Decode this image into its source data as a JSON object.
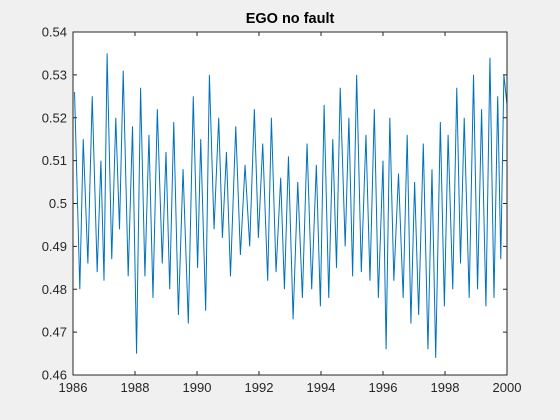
{
  "chart_data": {
    "type": "line",
    "title": "EGO no fault",
    "xlabel": "",
    "ylabel": "",
    "xlim": [
      1986,
      2000
    ],
    "ylim": [
      0.46,
      0.54
    ],
    "x_ticks": [
      1986,
      1988,
      1990,
      1992,
      1994,
      1996,
      1998,
      2000
    ],
    "x_tick_labels": [
      "1986",
      "1988",
      "1990",
      "1992",
      "1994",
      "1996",
      "1998",
      "2000"
    ],
    "y_ticks": [
      0.46,
      0.47,
      0.48,
      0.49,
      0.5,
      0.51,
      0.52,
      0.53,
      0.54
    ],
    "y_tick_labels": [
      "0.46",
      "0.47",
      "0.48",
      "0.49",
      "0.5",
      "0.51",
      "0.52",
      "0.53",
      "0.54"
    ],
    "grid": false,
    "series": [
      {
        "color": "#0072bd",
        "peaks": [
          [
            1986.05,
            0.526
          ],
          [
            1986.33,
            0.515
          ],
          [
            1986.62,
            0.525
          ],
          [
            1986.9,
            0.51
          ],
          [
            1987.1,
            0.535
          ],
          [
            1987.38,
            0.52
          ],
          [
            1987.62,
            0.531
          ],
          [
            1987.92,
            0.518
          ],
          [
            1988.18,
            0.527
          ],
          [
            1988.45,
            0.516
          ],
          [
            1988.72,
            0.522
          ],
          [
            1989.0,
            0.512
          ],
          [
            1989.25,
            0.519
          ],
          [
            1989.55,
            0.508
          ],
          [
            1989.88,
            0.525
          ],
          [
            1990.12,
            0.515
          ],
          [
            1990.4,
            0.53
          ],
          [
            1990.7,
            0.52
          ],
          [
            1990.95,
            0.512
          ],
          [
            1991.25,
            0.518
          ],
          [
            1991.55,
            0.509
          ],
          [
            1991.85,
            0.522
          ],
          [
            1992.12,
            0.514
          ],
          [
            1992.4,
            0.52
          ],
          [
            1992.7,
            0.506
          ],
          [
            1992.95,
            0.511
          ],
          [
            1993.25,
            0.505
          ],
          [
            1993.55,
            0.514
          ],
          [
            1993.85,
            0.509
          ],
          [
            1994.1,
            0.523
          ],
          [
            1994.38,
            0.515
          ],
          [
            1994.62,
            0.527
          ],
          [
            1994.9,
            0.52
          ],
          [
            1995.15,
            0.53
          ],
          [
            1995.45,
            0.516
          ],
          [
            1995.72,
            0.522
          ],
          [
            1996.0,
            0.51
          ],
          [
            1996.22,
            0.52
          ],
          [
            1996.5,
            0.507
          ],
          [
            1996.78,
            0.516
          ],
          [
            1997.02,
            0.505
          ],
          [
            1997.3,
            0.514
          ],
          [
            1997.58,
            0.508
          ],
          [
            1997.85,
            0.519
          ],
          [
            1998.1,
            0.516
          ],
          [
            1998.38,
            0.527
          ],
          [
            1998.62,
            0.52
          ],
          [
            1998.92,
            0.53
          ],
          [
            1999.18,
            0.522
          ],
          [
            1999.45,
            0.534
          ],
          [
            1999.7,
            0.525
          ],
          [
            1999.9,
            0.53
          ]
        ],
        "troughs": [
          [
            1986.22,
            0.48
          ],
          [
            1986.48,
            0.486
          ],
          [
            1986.78,
            0.484
          ],
          [
            1987.0,
            0.482
          ],
          [
            1987.25,
            0.487
          ],
          [
            1987.5,
            0.494
          ],
          [
            1987.78,
            0.483
          ],
          [
            1988.05,
            0.465
          ],
          [
            1988.32,
            0.483
          ],
          [
            1988.58,
            0.478
          ],
          [
            1988.88,
            0.486
          ],
          [
            1989.12,
            0.48
          ],
          [
            1989.4,
            0.474
          ],
          [
            1989.72,
            0.472
          ],
          [
            1990.02,
            0.485
          ],
          [
            1990.28,
            0.475
          ],
          [
            1990.55,
            0.494
          ],
          [
            1990.82,
            0.492
          ],
          [
            1991.08,
            0.483
          ],
          [
            1991.4,
            0.488
          ],
          [
            1991.7,
            0.49
          ],
          [
            1991.98,
            0.492
          ],
          [
            1992.28,
            0.482
          ],
          [
            1992.55,
            0.484
          ],
          [
            1992.82,
            0.48
          ],
          [
            1993.1,
            0.473
          ],
          [
            1993.4,
            0.478
          ],
          [
            1993.7,
            0.48
          ],
          [
            1993.98,
            0.476
          ],
          [
            1994.25,
            0.478
          ],
          [
            1994.5,
            0.485
          ],
          [
            1994.78,
            0.49
          ],
          [
            1995.02,
            0.483
          ],
          [
            1995.3,
            0.484
          ],
          [
            1995.58,
            0.482
          ],
          [
            1995.85,
            0.478
          ],
          [
            1996.1,
            0.466
          ],
          [
            1996.35,
            0.482
          ],
          [
            1996.65,
            0.478
          ],
          [
            1996.9,
            0.472
          ],
          [
            1997.15,
            0.474
          ],
          [
            1997.45,
            0.466
          ],
          [
            1997.7,
            0.464
          ],
          [
            1997.98,
            0.476
          ],
          [
            1998.25,
            0.48
          ],
          [
            1998.5,
            0.486
          ],
          [
            1998.78,
            0.478
          ],
          [
            1999.05,
            0.48
          ],
          [
            1999.32,
            0.476
          ],
          [
            1999.58,
            0.478
          ],
          [
            1999.8,
            0.487
          ],
          [
            2000.0,
            0.523
          ]
        ]
      }
    ]
  }
}
